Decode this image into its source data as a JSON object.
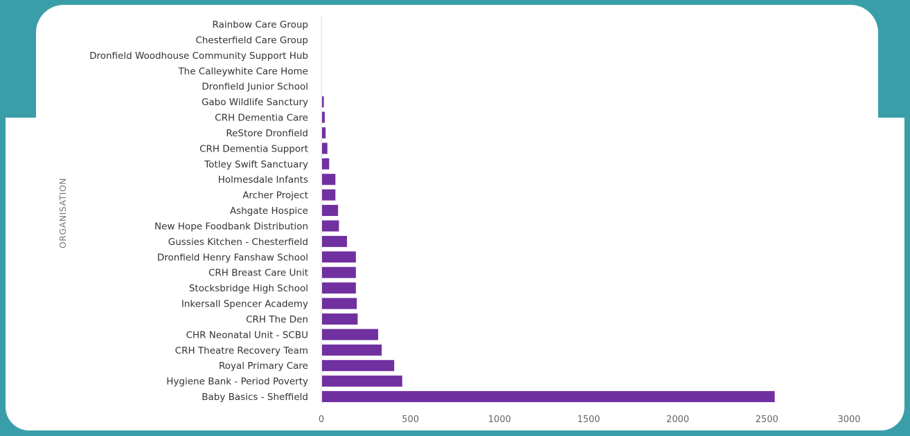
{
  "chart_data": {
    "type": "bar",
    "orientation": "horizontal",
    "ylabel": "ORGANISATION",
    "xlabel": "",
    "xlim": [
      0,
      3000
    ],
    "xticks": [
      "0",
      "500",
      "1000",
      "1500",
      "2000",
      "2500",
      "3000"
    ],
    "grid": false,
    "bar_color": "#7030a0",
    "categories": [
      "Rainbow Care Group",
      "Chesterfield Care Group",
      "Dronfield Woodhouse Community Support Hub",
      "The Calleywhite Care Home",
      "Dronfield Junior School",
      "Gabo Wildlife Sanctury",
      "CRH Dementia Care",
      "ReStore Dronfield",
      "CRH Dementia Support",
      "Totley Swift Sanctuary",
      "Holmesdale Infants",
      "Archer Project",
      "Ashgate Hospice",
      "New Hope Foodbank Distribution",
      "Gussies Kitchen - Chesterfield",
      "Dronfield Henry Fanshaw School",
      "CRH Breast Care Unit",
      "Stocksbridge High School",
      "Inkersall Spencer Academy",
      "CRH The Den",
      "CHR Neonatal Unit - SCBU",
      "CRH Theatre Recovery Team",
      "Royal Primary Care",
      "Hygiene Bank - Period Poverty",
      "Baby Basics - Sheffield"
    ],
    "values": [
      0,
      0,
      0,
      0,
      0,
      10,
      15,
      20,
      30,
      40,
      75,
      75,
      90,
      95,
      140,
      190,
      190,
      190,
      195,
      200,
      315,
      335,
      405,
      450,
      2540
    ]
  }
}
